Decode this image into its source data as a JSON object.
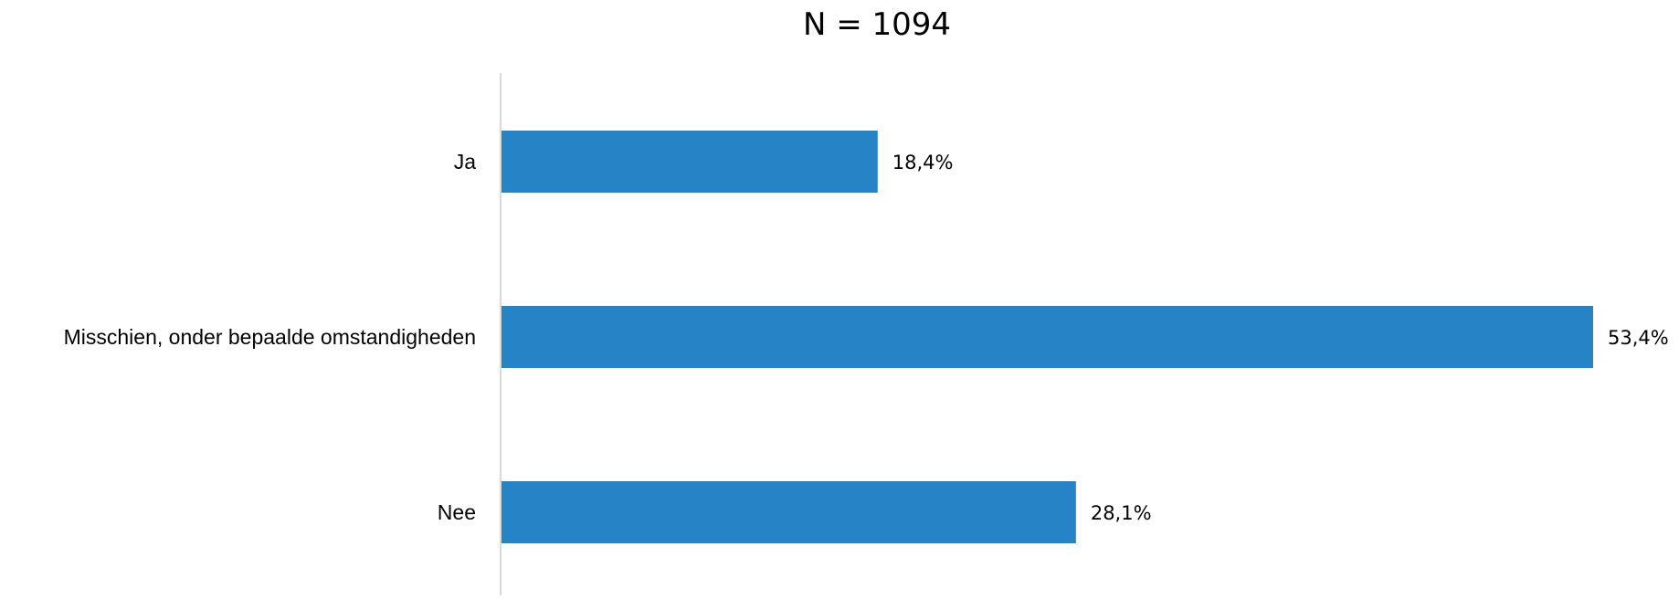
{
  "chart_data": {
    "type": "bar",
    "orientation": "horizontal",
    "title": "N = 1094",
    "categories": [
      "Ja",
      "Misschien, onder bepaalde omstandigheden",
      "Nee"
    ],
    "values": [
      18.4,
      53.4,
      28.1
    ],
    "value_labels": [
      "18,4%",
      "53,4%",
      "28,1%"
    ],
    "unit": "%",
    "xlim": [
      0,
      53.4
    ],
    "grid": false,
    "legend": "none",
    "colors": {
      "bar": "#2683C6",
      "axis": "#D9D9D9",
      "text": "#000000"
    }
  }
}
